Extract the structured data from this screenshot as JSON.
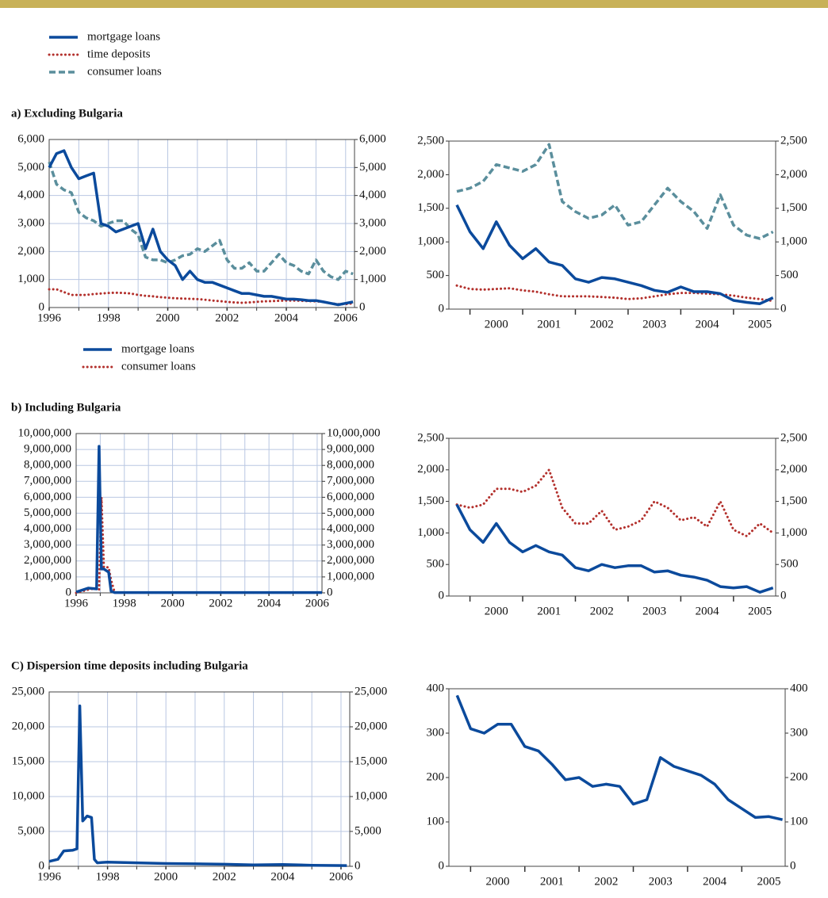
{
  "chart_data": [
    {
      "type": "line",
      "title": "a) Excluding Bulgaria",
      "legend": true,
      "grid": true,
      "xlabel_position": "at",
      "x": [
        1996,
        1996.25,
        1996.5,
        1996.75,
        1997,
        1997.25,
        1997.5,
        1997.75,
        1998,
        1998.25,
        1998.5,
        1998.75,
        1999,
        1999.25,
        1999.5,
        1999.75,
        2000,
        2000.25,
        2000.5,
        2000.75,
        2001,
        2001.25,
        2001.5,
        2001.75,
        2002,
        2002.25,
        2002.5,
        2002.75,
        2003,
        2003.25,
        2003.5,
        2003.75,
        2004,
        2004.25,
        2004.5,
        2004.75,
        2005,
        2005.25,
        2005.5,
        2005.75,
        2006,
        2006.25
      ],
      "xlim": [
        1996,
        2006.3
      ],
      "xticks": [
        1996,
        1998,
        2000,
        2002,
        2004,
        2006
      ],
      "minor_xticks": [
        1997,
        1999,
        2001,
        2003,
        2005
      ],
      "ylim": [
        0,
        6000
      ],
      "yticks": [
        0,
        {
          "value": 1000,
          "label": "1,000"
        },
        {
          "value": 2000,
          "label": "2,000"
        },
        {
          "value": 3000,
          "label": "3,000"
        },
        {
          "value": 4000,
          "label": "4,000"
        },
        {
          "value": 5000,
          "label": "5,000"
        },
        {
          "value": 6000,
          "label": "6,000"
        }
      ],
      "y2lim": [
        0,
        6000
      ],
      "y2ticks": [
        0,
        {
          "value": 1000,
          "label": "1,000"
        },
        {
          "value": 2000,
          "label": "2,000"
        },
        {
          "value": 3000,
          "label": "3,000"
        },
        {
          "value": 4000,
          "label": "4,000"
        },
        {
          "value": 5000,
          "label": "5,000"
        },
        {
          "value": 6000,
          "label": "6,000"
        }
      ],
      "series": [
        {
          "name": "mortgage loans",
          "color": "#0b4a9c",
          "dash": "solid",
          "values": [
            5000,
            5500,
            5600,
            5000,
            4600,
            4700,
            4800,
            3000,
            2900,
            2700,
            2800,
            2900,
            3000,
            2100,
            2800,
            2000,
            1700,
            1500,
            1000,
            1300,
            1000,
            900,
            900,
            800,
            700,
            600,
            500,
            500,
            450,
            400,
            400,
            350,
            300,
            300,
            280,
            250,
            250,
            200,
            150,
            100,
            150,
            200
          ]
        },
        {
          "name": "time deposits",
          "color": "#b3302c",
          "dash": "dotted",
          "values": [
            650,
            650,
            550,
            450,
            450,
            450,
            480,
            500,
            520,
            530,
            520,
            500,
            450,
            420,
            400,
            370,
            350,
            330,
            320,
            310,
            300,
            280,
            250,
            230,
            200,
            180,
            170,
            180,
            200,
            220,
            230,
            240,
            250,
            250,
            240,
            230,
            220,
            200,
            150,
            120,
            120,
            150
          ]
        },
        {
          "name": "consumer loans",
          "color": "#5a8e9c",
          "dash": "dashed",
          "values": [
            5200,
            4400,
            4200,
            4100,
            3400,
            3200,
            3100,
            2900,
            3000,
            3100,
            3100,
            2800,
            2600,
            1800,
            1700,
            1700,
            1600,
            1700,
            1850,
            1900,
            2100,
            2000,
            2200,
            2400,
            1700,
            1400,
            1400,
            1600,
            1300,
            1300,
            1600,
            1900,
            1600,
            1500,
            1300,
            1200,
            1700,
            1300,
            1100,
            1000,
            1300,
            1200
          ]
        }
      ]
    },
    {
      "type": "line",
      "grid": false,
      "xlabel_position": "between",
      "x": [
        1999.75,
        2000,
        2000.25,
        2000.5,
        2000.75,
        2001,
        2001.25,
        2001.5,
        2001.75,
        2002,
        2002.25,
        2002.5,
        2002.75,
        2003,
        2003.25,
        2003.5,
        2003.75,
        2004,
        2004.25,
        2004.5,
        2004.75,
        2005,
        2005.25,
        2005.5,
        2005.75
      ],
      "xlim": [
        1999.6,
        2005.8
      ],
      "xticks": [
        2000,
        2001,
        2002,
        2003,
        2004,
        2005
      ],
      "ylim": [
        0,
        2500
      ],
      "yticks": [
        0,
        500,
        {
          "value": 1000,
          "label": "1,000"
        },
        {
          "value": 1500,
          "label": "1,500"
        },
        {
          "value": 2000,
          "label": "2,000"
        },
        {
          "value": 2500,
          "label": "2,500"
        }
      ],
      "y2lim": [
        0,
        2500
      ],
      "y2ticks": [
        0,
        500,
        {
          "value": 1000,
          "label": "1,000"
        },
        {
          "value": 1500,
          "label": "1,500"
        },
        {
          "value": 2000,
          "label": "2,000"
        },
        {
          "value": 2500,
          "label": "2,500"
        }
      ],
      "series": [
        {
          "color": "#0b4a9c",
          "dash": "solid",
          "values": [
            1550,
            1150,
            900,
            1300,
            950,
            750,
            900,
            700,
            650,
            450,
            400,
            470,
            450,
            400,
            350,
            280,
            250,
            330,
            260,
            260,
            230,
            130,
            100,
            80,
            170
          ]
        },
        {
          "color": "#b3302c",
          "dash": "dotted",
          "values": [
            350,
            300,
            290,
            300,
            310,
            280,
            260,
            220,
            190,
            190,
            190,
            180,
            170,
            150,
            160,
            190,
            220,
            240,
            240,
            230,
            220,
            200,
            170,
            150,
            120
          ]
        },
        {
          "color": "#5a8e9c",
          "dash": "dashed",
          "values": [
            1750,
            1800,
            1900,
            2150,
            2100,
            2050,
            2150,
            2450,
            1600,
            1450,
            1350,
            1400,
            1550,
            1250,
            1300,
            1550,
            1800,
            1600,
            1450,
            1200,
            1700,
            1250,
            1100,
            1050,
            1150
          ]
        }
      ]
    },
    {
      "type": "line",
      "title": "b) Including Bulgaria",
      "legend": true,
      "grid": true,
      "xlabel_position": "at",
      "x": [
        1996,
        1996.5,
        1996.85,
        1996.95,
        1997.05,
        1997.15,
        1997.35,
        1997.45,
        1997.6,
        1998,
        2000,
        2002,
        2004,
        2006.2
      ],
      "xlim": [
        1996,
        2006.2
      ],
      "xticks": [
        1996,
        1998,
        2000,
        2002,
        2004,
        2006
      ],
      "minor_xticks": [
        1997,
        1999,
        2001,
        2003,
        2005
      ],
      "ylim": [
        0,
        10000000
      ],
      "yticks": [
        0,
        {
          "value": 1000000,
          "label": "1,000,000"
        },
        {
          "value": 2000000,
          "label": "2,000,000"
        },
        {
          "value": 3000000,
          "label": "3,000,000"
        },
        {
          "value": 4000000,
          "label": "4,000,000"
        },
        {
          "value": 5000000,
          "label": "5,000,000"
        },
        {
          "value": 6000000,
          "label": "6,000,000"
        },
        {
          "value": 7000000,
          "label": "7,000,000"
        },
        {
          "value": 8000000,
          "label": "8,000,000"
        },
        {
          "value": 9000000,
          "label": "9,000,000"
        },
        {
          "value": 10000000,
          "label": "10,000,000"
        }
      ],
      "y2lim": [
        0,
        10000000
      ],
      "y2ticks": [
        0,
        {
          "value": 1000000,
          "label": "1,000,000"
        },
        {
          "value": 2000000,
          "label": "2,000,000"
        },
        {
          "value": 3000000,
          "label": "3,000,000"
        },
        {
          "value": 4000000,
          "label": "4,000,000"
        },
        {
          "value": 5000000,
          "label": "5,000,000"
        },
        {
          "value": 6000000,
          "label": "6,000,000"
        },
        {
          "value": 7000000,
          "label": "7,000,000"
        },
        {
          "value": 8000000,
          "label": "8,000,000"
        },
        {
          "value": 9000000,
          "label": "9,000,000"
        },
        {
          "value": 10000000,
          "label": "10,000,000"
        }
      ],
      "series": [
        {
          "name": "mortgage loans",
          "color": "#0b4a9c",
          "dash": "solid",
          "values": [
            50000,
            300000,
            250000,
            9200000,
            1500000,
            1500000,
            1300000,
            100000,
            20000,
            20000,
            20000,
            20000,
            20000,
            20000
          ]
        },
        {
          "name": "consumer loans",
          "color": "#b3302c",
          "dash": "dotted",
          "values": [
            0,
            200000,
            300000,
            200000,
            6000000,
            1600000,
            1600000,
            800000,
            20000,
            20000,
            20000,
            20000,
            20000,
            20000
          ]
        }
      ]
    },
    {
      "type": "line",
      "grid": false,
      "xlabel_position": "between",
      "x": [
        1999.75,
        2000,
        2000.25,
        2000.5,
        2000.75,
        2001,
        2001.25,
        2001.5,
        2001.75,
        2002,
        2002.25,
        2002.5,
        2002.75,
        2003,
        2003.25,
        2003.5,
        2003.75,
        2004,
        2004.25,
        2004.5,
        2004.75,
        2005,
        2005.25,
        2005.5,
        2005.75
      ],
      "xlim": [
        1999.6,
        2005.8
      ],
      "xticks": [
        2000,
        2001,
        2002,
        2003,
        2004,
        2005
      ],
      "ylim": [
        0,
        2500
      ],
      "yticks": [
        0,
        500,
        {
          "value": 1000,
          "label": "1,000"
        },
        {
          "value": 1500,
          "label": "1,500"
        },
        {
          "value": 2000,
          "label": "2,000"
        },
        {
          "value": 2500,
          "label": "2,500"
        }
      ],
      "y2lim": [
        0,
        2500
      ],
      "y2ticks": [
        0,
        500,
        {
          "value": 1000,
          "label": "1,000"
        },
        {
          "value": 1500,
          "label": "1,500"
        },
        {
          "value": 2000,
          "label": "2,000"
        },
        {
          "value": 2500,
          "label": "2,500"
        }
      ],
      "series": [
        {
          "color": "#0b4a9c",
          "dash": "solid",
          "values": [
            1450,
            1050,
            850,
            1150,
            850,
            700,
            800,
            700,
            650,
            450,
            400,
            500,
            450,
            480,
            480,
            380,
            400,
            330,
            300,
            250,
            150,
            130,
            150,
            60,
            130
          ]
        },
        {
          "color": "#b3302c",
          "dash": "dotted",
          "values": [
            1450,
            1400,
            1450,
            1700,
            1700,
            1650,
            1750,
            2000,
            1400,
            1150,
            1150,
            1350,
            1050,
            1100,
            1200,
            1500,
            1400,
            1200,
            1250,
            1100,
            1500,
            1050,
            950,
            1150,
            1000
          ]
        }
      ]
    },
    {
      "type": "line",
      "title": "C) Dispersion time deposits including Bulgaria",
      "grid": true,
      "xlabel_position": "at",
      "x": [
        1996,
        1996.3,
        1996.5,
        1996.8,
        1996.95,
        1997.05,
        1997.15,
        1997.3,
        1997.45,
        1997.55,
        1997.65,
        1998,
        1999,
        2000,
        2001,
        2002,
        2003,
        2004,
        2005,
        2006.2
      ],
      "xlim": [
        1996,
        2006.3
      ],
      "xticks": [
        1996,
        1998,
        2000,
        2002,
        2004,
        2006
      ],
      "minor_xticks": [
        1997,
        1999,
        2001,
        2003,
        2005
      ],
      "ylim": [
        0,
        25000
      ],
      "yticks": [
        0,
        {
          "value": 5000,
          "label": "5,000"
        },
        {
          "value": 10000,
          "label": "10,000"
        },
        {
          "value": 15000,
          "label": "15,000"
        },
        {
          "value": 20000,
          "label": "20,000"
        },
        {
          "value": 25000,
          "label": "25,000"
        }
      ],
      "y2lim": [
        0,
        25000
      ],
      "y2ticks": [
        0,
        {
          "value": 5000,
          "label": "5,000"
        },
        {
          "value": 10000,
          "label": "10,000"
        },
        {
          "value": 15000,
          "label": "15,000"
        },
        {
          "value": 20000,
          "label": "20,000"
        },
        {
          "value": 25000,
          "label": "25,000"
        }
      ],
      "series": [
        {
          "color": "#0b4a9c",
          "dash": "solid",
          "values": [
            700,
            1000,
            2200,
            2300,
            2500,
            23000,
            6500,
            7200,
            7000,
            1000,
            500,
            600,
            500,
            400,
            350,
            300,
            200,
            250,
            150,
            100
          ]
        }
      ]
    },
    {
      "type": "line",
      "grid": false,
      "xlabel_position": "between",
      "x": [
        1999.75,
        2000,
        2000.25,
        2000.5,
        2000.75,
        2001,
        2001.25,
        2001.5,
        2001.75,
        2002,
        2002.25,
        2002.5,
        2002.75,
        2003,
        2003.25,
        2003.5,
        2003.75,
        2004,
        2004.25,
        2004.5,
        2004.75,
        2005,
        2005.25,
        2005.5,
        2005.75
      ],
      "xlim": [
        1999.6,
        2005.8
      ],
      "xticks": [
        2000,
        2001,
        2002,
        2003,
        2004,
        2005
      ],
      "ylim": [
        0,
        400
      ],
      "yticks": [
        0,
        100,
        200,
        300,
        400
      ],
      "y2lim": [
        0,
        400
      ],
      "y2ticks": [
        0,
        100,
        200,
        300,
        400
      ],
      "series": [
        {
          "color": "#0b4a9c",
          "dash": "solid",
          "values": [
            385,
            310,
            300,
            320,
            320,
            270,
            260,
            230,
            195,
            200,
            180,
            185,
            180,
            140,
            150,
            245,
            225,
            215,
            205,
            185,
            150,
            130,
            110,
            112,
            105
          ]
        }
      ]
    }
  ]
}
